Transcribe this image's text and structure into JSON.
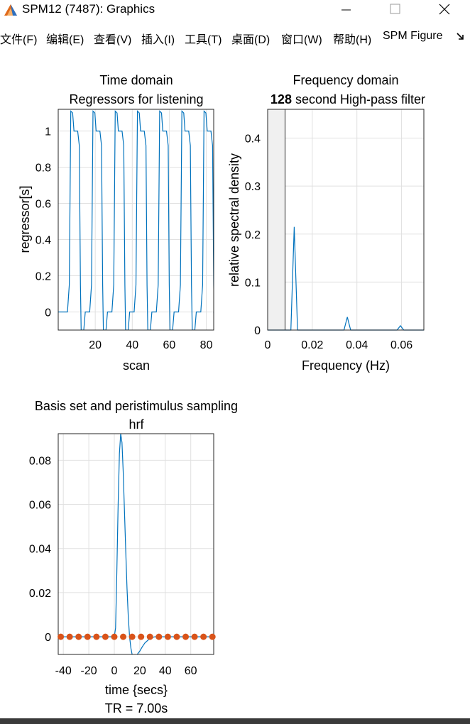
{
  "window": {
    "title": "SPM12 (7487): Graphics",
    "bottom_bar_color": "#3a3a3a"
  },
  "menubar": {
    "items": [
      "文件(F)",
      "编辑(E)",
      "查看(V)",
      "插入(I)",
      "工具(T)",
      "桌面(D)",
      "窗口(W)",
      "帮助(H)",
      "SPM Figure"
    ]
  },
  "colors": {
    "line": "#0072bd",
    "sample_dot": "#d95319",
    "grid": "#e0e0e0",
    "filter_band": "#f0f0f0"
  },
  "chart_data": [
    {
      "type": "line",
      "title": "Time domain",
      "subtitle": "Regressors for listening",
      "xlabel": "scan",
      "ylabel": "regressor[s]",
      "xlim": [
        0,
        84
      ],
      "ylim": [
        -0.1,
        1.12
      ],
      "xticks": [
        20,
        40,
        60,
        80
      ],
      "yticks": [
        0,
        0.2,
        0.4,
        0.6,
        0.8,
        1
      ],
      "ytick_labels": [
        "0",
        "0.2",
        "0.4",
        "0.6",
        "0.8",
        "1"
      ],
      "block_length_scans": 6,
      "on_blocks_start": [
        6,
        18,
        30,
        42,
        54,
        66,
        78
      ],
      "series": [
        {
          "name": "listening",
          "color": "#0072bd"
        }
      ]
    },
    {
      "type": "line",
      "title": "Frequency domain",
      "subtitle_bold": "128",
      "subtitle_rest": " second High-pass filter",
      "xlabel": "Frequency (Hz)",
      "ylabel": "relative spectral density",
      "xlim": [
        0,
        0.07
      ],
      "ylim": [
        0,
        0.46
      ],
      "xticks": [
        0,
        0.02,
        0.04,
        0.06
      ],
      "xtick_labels": [
        "0",
        "0.02",
        "0.04",
        "0.06"
      ],
      "yticks": [
        0,
        0.1,
        0.2,
        0.3,
        0.4
      ],
      "ytick_labels": [
        "0",
        "0.1",
        "0.2",
        "0.3",
        "0.4"
      ],
      "highpass_cutoff_hz": 0.0078,
      "x": [
        0,
        0.0104,
        0.0119,
        0.0134,
        0.0342,
        0.0357,
        0.0372,
        0.058,
        0.0595,
        0.061,
        0.07
      ],
      "values": [
        0,
        0,
        0.215,
        0,
        0,
        0.027,
        0,
        0,
        0.009,
        0,
        0
      ]
    },
    {
      "type": "line",
      "title": "Basis set and peristimulus sampling",
      "subtitle": "hrf",
      "xlabel": "time {secs}",
      "footer": "TR = 7.00s",
      "xlim": [
        -44,
        78
      ],
      "ylim": [
        -0.008,
        0.092
      ],
      "xticks": [
        -40,
        -20,
        0,
        20,
        40,
        60
      ],
      "xtick_labels": [
        "-40",
        "-20",
        "0",
        "20",
        "40",
        "60"
      ],
      "yticks": [
        0,
        0.02,
        0.04,
        0.06,
        0.08
      ],
      "ytick_labels": [
        "0",
        "0.02",
        "0.04",
        "0.06",
        "0.08"
      ],
      "x": [
        -44,
        0,
        1,
        2,
        3,
        4,
        5,
        6,
        7,
        8,
        9,
        10,
        11,
        12,
        13,
        14,
        15,
        16,
        17,
        18,
        20,
        22,
        24,
        27,
        30,
        32,
        78
      ],
      "values": [
        0,
        0,
        0.004,
        0.03,
        0.06,
        0.083,
        0.092,
        0.088,
        0.075,
        0.057,
        0.039,
        0.022,
        0.009,
        0.0,
        -0.005,
        -0.008,
        -0.009,
        -0.009,
        -0.009,
        -0.008,
        -0.0065,
        -0.0045,
        -0.0028,
        -0.0012,
        -0.0003,
        0,
        0
      ],
      "samples_x": [
        -42,
        -35,
        -28,
        -21,
        -14,
        -7,
        0,
        7,
        14,
        21,
        28,
        35,
        42,
        49,
        56,
        63,
        70,
        77
      ],
      "samples_y": [
        0,
        0,
        0,
        0,
        0,
        0,
        0,
        0,
        0,
        0,
        0,
        0,
        0,
        0,
        0,
        0,
        0,
        0
      ]
    }
  ]
}
